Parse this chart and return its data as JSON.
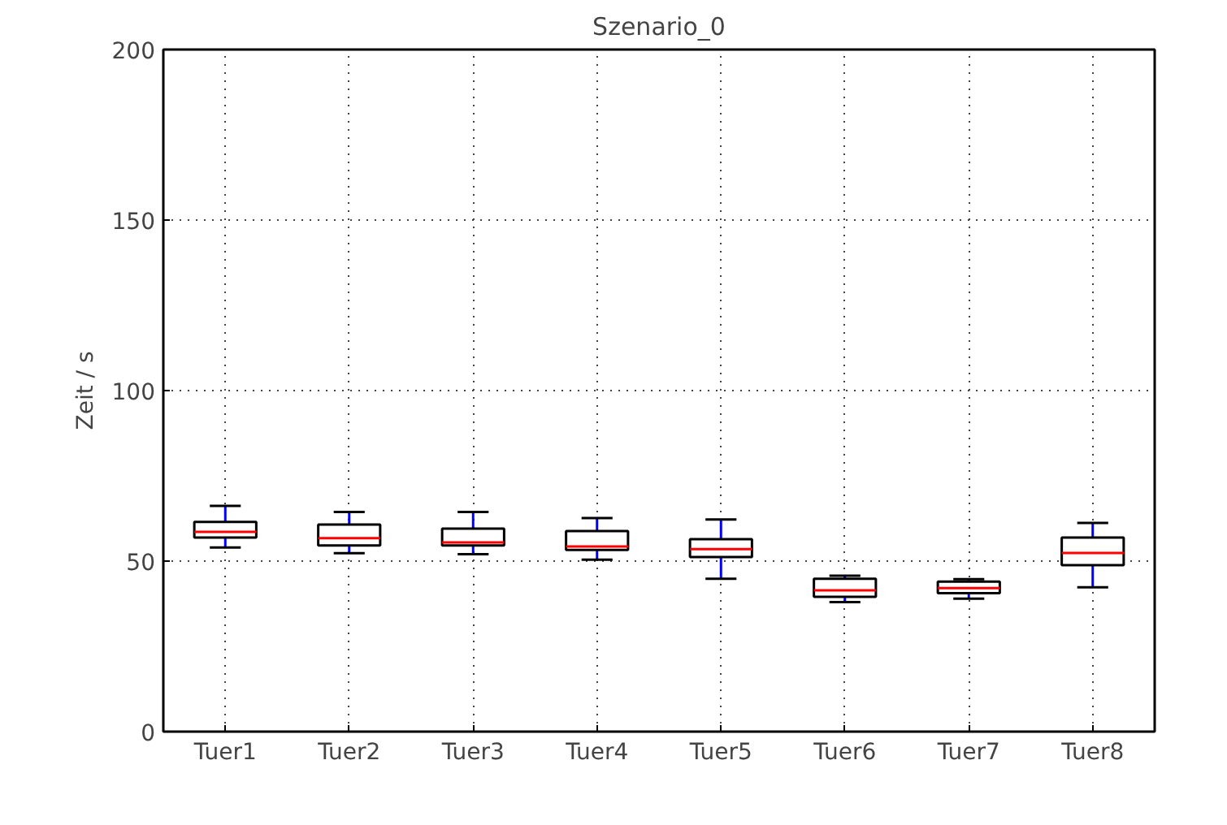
{
  "chart_data": {
    "type": "box",
    "title": "Szenario_0",
    "ylabel": "Zeit / s",
    "categories": [
      "Tuer1",
      "Tuer2",
      "Tuer3",
      "Tuer4",
      "Tuer5",
      "Tuer6",
      "Tuer7",
      "Tuer8"
    ],
    "ylim": [
      0,
      200
    ],
    "yticks": [
      0,
      50,
      100,
      150,
      200
    ],
    "grid": true,
    "series": [
      {
        "color": "#000000",
        "boxes": [
          {
            "low": 54,
            "q1": 56.9,
            "median": 58.6,
            "q3": 61.5,
            "high": 66.2
          },
          {
            "low": 52.3,
            "q1": 54.6,
            "median": 56.7,
            "q3": 60.7,
            "high": 64.4
          },
          {
            "low": 52,
            "q1": 54.6,
            "median": 55.5,
            "q3": 59.5,
            "high": 64.4
          },
          {
            "low": 50.4,
            "q1": 53.3,
            "median": 54.3,
            "q3": 58.8,
            "high": 62.6
          },
          {
            "low": 44.8,
            "q1": 51.2,
            "median": 53.5,
            "q3": 56.4,
            "high": 62.2
          },
          {
            "low": 38,
            "q1": 39.5,
            "median": 41.4,
            "q3": 44.8,
            "high": 45.7
          },
          {
            "low": 39,
            "q1": 40.6,
            "median": 42.1,
            "q3": 44,
            "high": 44.7
          },
          {
            "low": 42.3,
            "q1": 48.8,
            "median": 52.4,
            "q3": 56.9,
            "high": 61.2
          }
        ]
      }
    ]
  }
}
